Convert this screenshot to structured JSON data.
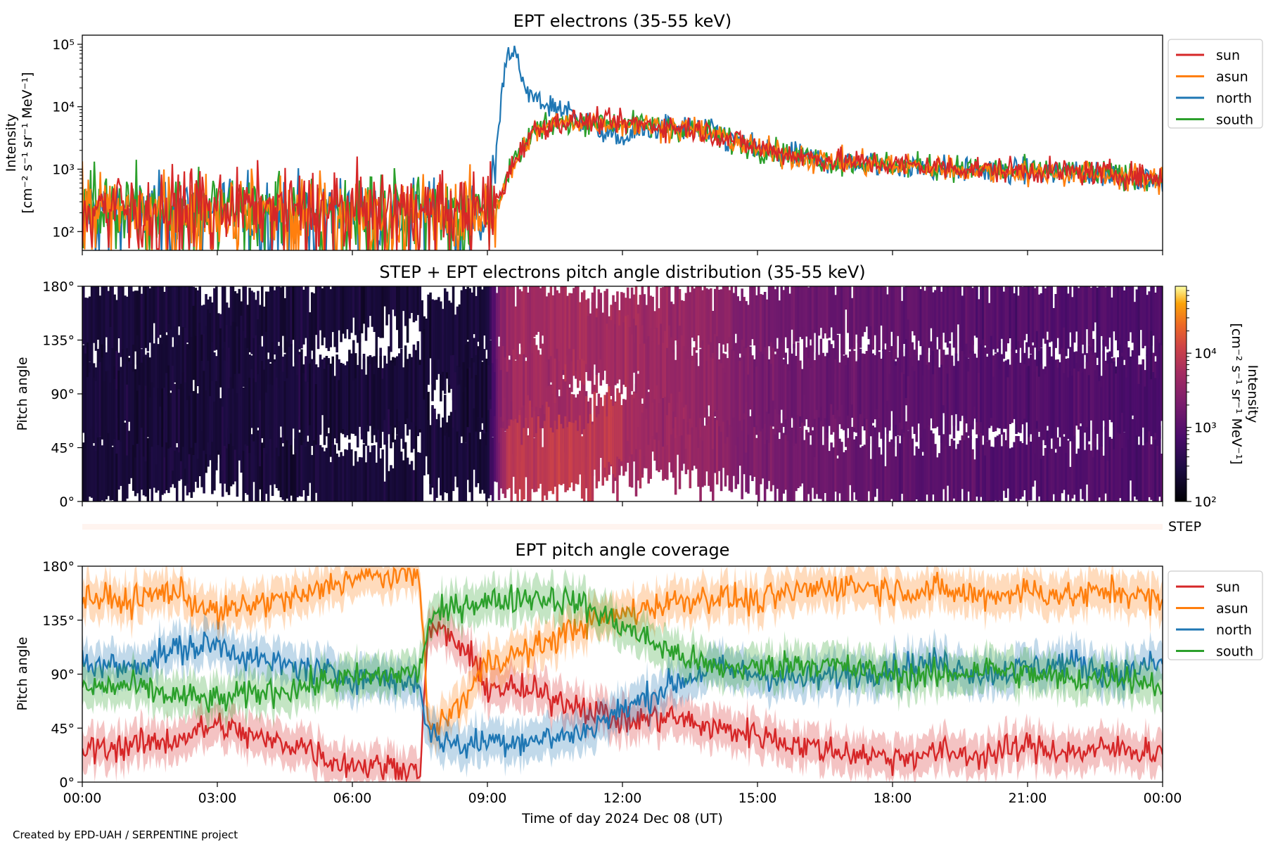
{
  "footer": {
    "credit": "Created by EPD-UAH / SERPENTINE project"
  },
  "colors": {
    "sun": "#d62728",
    "asun": "#ff7f0e",
    "north": "#1f77b4",
    "south": "#2ca02c"
  },
  "chart_data": [
    {
      "type": "line",
      "title": "EPT electrons (35-55 keV)",
      "ylabel": "Intensity",
      "yunit": "[cm⁻² s⁻¹ sr⁻¹ MeV⁻¹]",
      "yscale": "log",
      "ylim": [
        50,
        140000
      ],
      "yticks": [
        100,
        1000,
        10000,
        100000
      ],
      "ytick_labels": [
        "10²",
        "10³",
        "10⁴",
        "10⁵"
      ],
      "xlim": [
        0,
        24
      ],
      "legend": {
        "placement": "outside-right",
        "entries": [
          "sun",
          "asun",
          "north",
          "south"
        ]
      },
      "series": [
        {
          "name": "sun",
          "color": "#d62728",
          "x": [
            0,
            1,
            2,
            3,
            4,
            5,
            6,
            7,
            8,
            9,
            9.3,
            9.6,
            10,
            10.5,
            11,
            11.5,
            12,
            12.5,
            13,
            13.5,
            14,
            15,
            16,
            17,
            18,
            19,
            20,
            21,
            22,
            23,
            24
          ],
          "y": [
            280,
            270,
            260,
            260,
            250,
            250,
            250,
            240,
            230,
            230,
            400,
            1400,
            4000,
            5500,
            6000,
            5800,
            5500,
            5200,
            4800,
            4500,
            3800,
            2200,
            1600,
            1300,
            1200,
            1100,
            1000,
            950,
            900,
            850,
            700
          ]
        },
        {
          "name": "asun",
          "color": "#ff7f0e",
          "x": [
            0,
            1,
            2,
            3,
            4,
            5,
            6,
            7,
            8,
            9,
            9.3,
            9.6,
            10,
            10.5,
            11,
            11.5,
            12,
            12.5,
            13,
            13.5,
            14,
            15,
            16,
            17,
            18,
            19,
            20,
            21,
            22,
            23,
            24
          ],
          "y": [
            260,
            250,
            240,
            240,
            230,
            230,
            230,
            220,
            210,
            200,
            350,
            1200,
            3800,
            5300,
            5800,
            5600,
            5300,
            5000,
            4600,
            4300,
            3600,
            2100,
            1500,
            1250,
            1150,
            1050,
            950,
            900,
            850,
            800,
            650
          ]
        },
        {
          "name": "north",
          "color": "#1f77b4",
          "x": [
            0,
            1,
            2,
            3,
            4,
            5,
            6,
            7,
            8,
            9,
            9.2,
            9.4,
            9.5,
            9.6,
            9.8,
            10,
            10.3,
            10.7,
            11,
            11.5,
            12,
            12.5,
            13,
            13.5,
            14,
            15,
            16,
            17,
            18,
            19,
            20,
            21,
            22,
            23,
            24
          ],
          "y": [
            240,
            230,
            220,
            220,
            210,
            210,
            210,
            200,
            190,
            180,
            2000,
            60000,
            80000,
            85000,
            20000,
            14000,
            11000,
            9000,
            7000,
            4000,
            3000,
            4200,
            4800,
            4400,
            3700,
            2000,
            1500,
            1250,
            1150,
            1050,
            950,
            900,
            850,
            800,
            650
          ]
        },
        {
          "name": "south",
          "color": "#2ca02c",
          "x": [
            0,
            1,
            2,
            3,
            4,
            5,
            6,
            7,
            8,
            9,
            9.3,
            9.6,
            10,
            10.5,
            11,
            11.5,
            12,
            12.5,
            13,
            13.5,
            14,
            15,
            16,
            17,
            18,
            19,
            20,
            21,
            22,
            23,
            24
          ],
          "y": [
            270,
            260,
            250,
            250,
            240,
            240,
            240,
            230,
            220,
            220,
            380,
            1300,
            3900,
            5400,
            5900,
            5700,
            5400,
            5100,
            4700,
            4400,
            3700,
            2150,
            1550,
            1280,
            1180,
            1080,
            980,
            930,
            880,
            830,
            680
          ]
        }
      ]
    },
    {
      "type": "heatmap",
      "title": "STEP + EPT electrons pitch angle distribution (35-55 keV)",
      "ylabel": "Pitch angle",
      "ylim": [
        0,
        180
      ],
      "yticks": [
        0,
        45,
        90,
        135,
        180
      ],
      "ytick_labels": [
        "0°",
        "45°",
        "90°",
        "135°",
        "180°"
      ],
      "xlim": [
        0,
        24
      ],
      "colorbar": {
        "label": "Intensity",
        "unit": "[cm⁻² s⁻¹ sr⁻¹ MeV⁻¹]",
        "scale": "log",
        "range": [
          100,
          80000
        ],
        "ticks": [
          100,
          1000,
          10000
        ],
        "tick_labels": [
          "10²",
          "10³",
          "10⁴"
        ]
      },
      "intensity_profile": {
        "x": [
          0,
          9,
          9.3,
          9.6,
          10,
          11,
          12,
          13,
          14,
          15,
          18,
          21,
          24
        ],
        "y": [
          250,
          240,
          3000,
          5000,
          5000,
          5500,
          5000,
          4500,
          3500,
          2000,
          1200,
          900,
          800
        ]
      },
      "step_strip_label": "STEP"
    },
    {
      "type": "line",
      "title": "EPT pitch angle coverage",
      "ylabel": "Pitch angle",
      "ylim": [
        0,
        180
      ],
      "yticks": [
        0,
        45,
        90,
        135,
        180
      ],
      "ytick_labels": [
        "0°",
        "45°",
        "90°",
        "135°",
        "180°"
      ],
      "xlim": [
        0,
        24
      ],
      "xticks": [
        0,
        3,
        6,
        9,
        12,
        15,
        18,
        21,
        24
      ],
      "xtick_labels": [
        "00:00",
        "03:00",
        "06:00",
        "09:00",
        "12:00",
        "15:00",
        "18:00",
        "21:00",
        "00:00"
      ],
      "xlabel": "Time of day 2024 Dec 08 (UT)",
      "legend": {
        "placement": "outside-right",
        "entries": [
          "sun",
          "asun",
          "north",
          "south"
        ]
      },
      "series": [
        {
          "name": "sun",
          "color": "#d62728",
          "x": [
            0,
            1,
            2,
            3,
            4,
            5,
            5.5,
            6,
            7,
            7.5,
            7.7,
            8,
            8.5,
            9,
            10,
            11,
            12,
            13,
            14,
            15,
            16,
            17,
            18,
            19,
            20,
            21,
            22,
            23,
            24
          ],
          "y": [
            28,
            30,
            35,
            48,
            35,
            30,
            18,
            15,
            12,
            10,
            130,
            125,
            110,
            80,
            75,
            65,
            50,
            55,
            45,
            40,
            30,
            25,
            20,
            25,
            22,
            30,
            25,
            28,
            25
          ]
        },
        {
          "name": "asun",
          "color": "#ff7f0e",
          "x": [
            0,
            1,
            2,
            3,
            4,
            5,
            5.5,
            6,
            7,
            7.5,
            7.7,
            8,
            8.5,
            9,
            10,
            11,
            12,
            13,
            14,
            15,
            16,
            17,
            18,
            19,
            20,
            21,
            22,
            23,
            24
          ],
          "y": [
            155,
            150,
            160,
            140,
            150,
            155,
            165,
            170,
            172,
            175,
            40,
            50,
            70,
            100,
            110,
            130,
            140,
            150,
            155,
            150,
            160,
            165,
            160,
            160,
            155,
            160,
            155,
            160,
            150
          ]
        },
        {
          "name": "north",
          "color": "#1f77b4",
          "x": [
            0,
            1,
            2,
            3,
            4,
            5,
            5.5,
            6,
            7,
            7.5,
            7.7,
            8,
            8.5,
            9,
            10,
            11,
            12,
            13,
            14,
            15,
            16,
            17,
            18,
            19,
            20,
            21,
            22,
            23,
            24
          ],
          "y": [
            100,
            95,
            110,
            115,
            100,
            95,
            90,
            88,
            85,
            82,
            40,
            35,
            30,
            35,
            35,
            40,
            60,
            80,
            95,
            90,
            85,
            90,
            95,
            100,
            90,
            95,
            100,
            90,
            100
          ]
        },
        {
          "name": "south",
          "color": "#2ca02c",
          "x": [
            0,
            1,
            2,
            3,
            4,
            5,
            5.5,
            6,
            7,
            7.5,
            7.7,
            8,
            8.5,
            9,
            10,
            11,
            12,
            13,
            14,
            15,
            16,
            17,
            18,
            19,
            20,
            21,
            22,
            23,
            24
          ],
          "y": [
            78,
            80,
            72,
            68,
            75,
            80,
            85,
            86,
            90,
            92,
            135,
            140,
            150,
            150,
            155,
            150,
            130,
            110,
            95,
            95,
            100,
            95,
            90,
            88,
            95,
            90,
            85,
            90,
            80
          ]
        }
      ]
    }
  ]
}
